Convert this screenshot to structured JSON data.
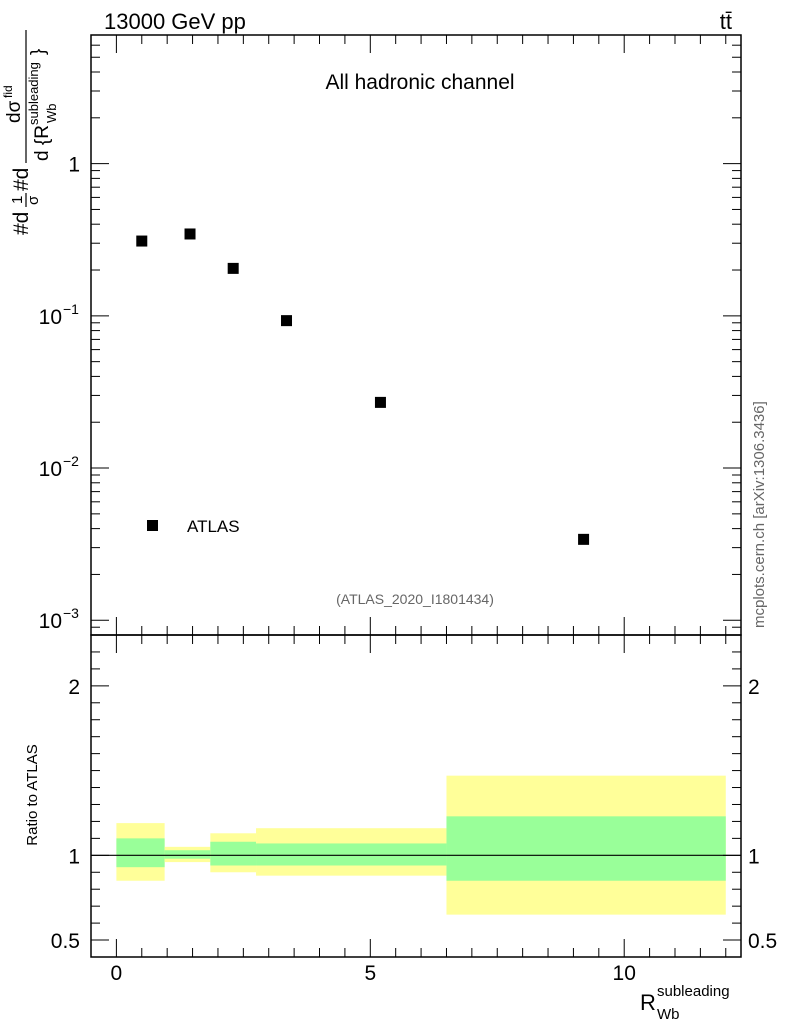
{
  "header": {
    "energy_label": "13000 GeV pp",
    "process_label": "tt̄"
  },
  "watermark": "mcplots.cern.ch [arXiv:1306.3436]",
  "chart_data": [
    {
      "type": "scatter",
      "panel": "main",
      "title": "All hadronic channel",
      "analysis_tag": "(ATLAS_2020_I1801434)",
      "ylabel_lines": [
        "#d",
        "1",
        "σ",
        "#d",
        "dσ",
        "fid",
        "d {R",
        "subleading",
        "Wb",
        "}"
      ],
      "ylabel_parts": {
        "numerator_prefix": "#d",
        "one": "1",
        "sigma": "σ",
        "middle": "#d",
        "dsigma": "dσ",
        "fid": "fid",
        "denominator": "d {R",
        "denominator_sup": "subleading",
        "denominator_sub": "Wb",
        "close": "}"
      },
      "yscale": "log",
      "xlim": [
        -0.5,
        12.3
      ],
      "ylim": [
        0.0008,
        7
      ],
      "y_tick_labels": [
        {
          "value": 1,
          "base": "1",
          "exp": ""
        },
        {
          "value": 0.1,
          "base": "10",
          "exp": "−1"
        },
        {
          "value": 0.01,
          "base": "10",
          "exp": "−2"
        },
        {
          "value": 0.001,
          "base": "10",
          "exp": "−3"
        }
      ],
      "legend": {
        "placement": "lower-left",
        "entries": [
          "ATLAS"
        ]
      },
      "series": [
        {
          "name": "ATLAS",
          "x": [
            0.5,
            1.45,
            2.3,
            3.35,
            5.2,
            9.2
          ],
          "y": [
            0.31,
            0.345,
            0.205,
            0.093,
            0.027,
            0.0034
          ]
        }
      ]
    },
    {
      "type": "area",
      "panel": "ratio",
      "ylabel": "Ratio to ATLAS",
      "xlabel": "R",
      "xlabel_sup": "subleading",
      "xlabel_sub": "Wb",
      "xlim": [
        -0.5,
        12.3
      ],
      "ylim": [
        0.4,
        2.3
      ],
      "x_ticks": [
        0,
        5,
        10
      ],
      "x_tick_labels": [
        "0",
        "5",
        "10"
      ],
      "y_ticks": [
        0.5,
        1,
        2
      ],
      "y_tick_labels": [
        "0.5",
        "1",
        "2"
      ],
      "reference_line": 1,
      "bins": [
        {
          "x0": 0.0,
          "x1": 0.95,
          "inner": [
            0.93,
            1.1
          ],
          "outer": [
            0.85,
            1.19
          ]
        },
        {
          "x0": 0.95,
          "x1": 1.85,
          "inner": [
            0.98,
            1.03
          ],
          "outer": [
            0.96,
            1.05
          ]
        },
        {
          "x0": 1.85,
          "x1": 2.75,
          "inner": [
            0.94,
            1.08
          ],
          "outer": [
            0.9,
            1.13
          ]
        },
        {
          "x0": 2.75,
          "x1": 6.5,
          "inner": [
            0.94,
            1.07
          ],
          "outer": [
            0.88,
            1.16
          ]
        },
        {
          "x0": 6.5,
          "x1": 12.0,
          "inner": [
            0.85,
            1.23
          ],
          "outer": [
            0.65,
            1.47
          ]
        }
      ],
      "colors": {
        "inner": "#99ff99",
        "outer": "#ffff99",
        "line": "#000000"
      }
    }
  ]
}
